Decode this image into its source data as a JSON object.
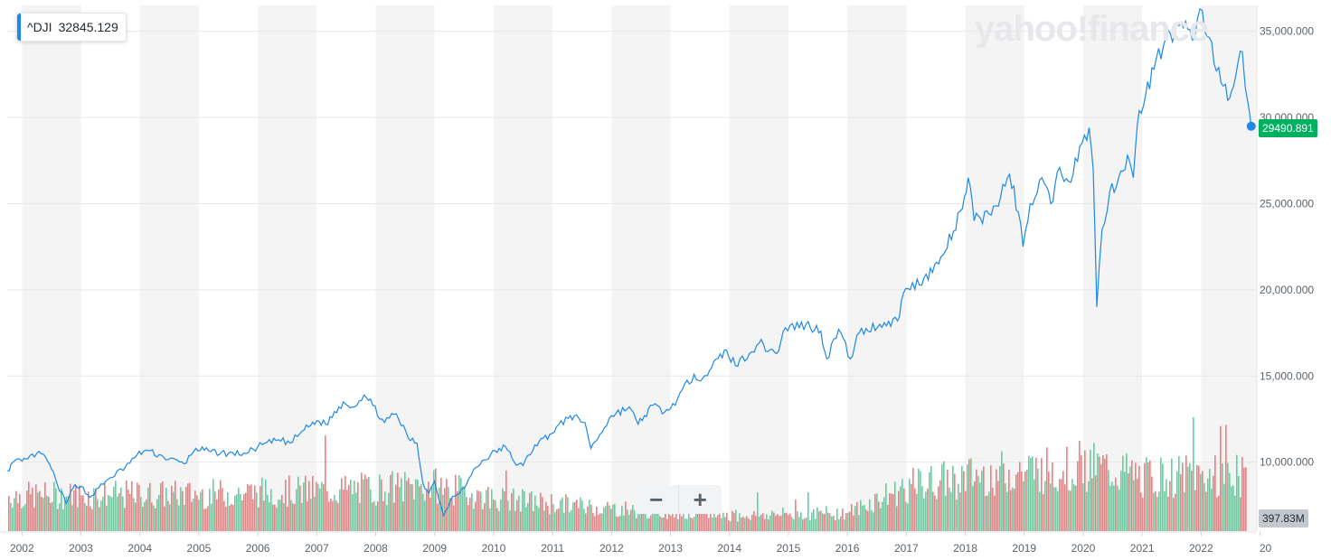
{
  "tooltip": {
    "symbol": "^DJI",
    "value": "32845.129"
  },
  "watermark": "yahoo!finance",
  "last_price_label": "29490.891",
  "volume_label": "397.83M",
  "colors": {
    "line": "#1e88e5",
    "vol_up": "#3ccf8e",
    "vol_down": "#f56565",
    "band": "#f4f4f4",
    "price_tag": "#00b061"
  },
  "chart_data": {
    "type": "line",
    "series": [
      {
        "values": [
          [
            2001.75,
            9500
          ],
          [
            2001.85,
            10000
          ],
          [
            2002.0,
            10050
          ],
          [
            2002.1,
            10200
          ],
          [
            2002.25,
            10500
          ],
          [
            2002.4,
            10300
          ],
          [
            2002.5,
            9600
          ],
          [
            2002.6,
            8700
          ],
          [
            2002.75,
            7600
          ],
          [
            2002.9,
            8700
          ],
          [
            2003.0,
            8600
          ],
          [
            2003.15,
            7950
          ],
          [
            2003.3,
            8500
          ],
          [
            2003.5,
            9100
          ],
          [
            2003.75,
            9700
          ],
          [
            2003.95,
            10400
          ],
          [
            2004.1,
            10700
          ],
          [
            2004.4,
            10300
          ],
          [
            2004.75,
            9900
          ],
          [
            2004.95,
            10800
          ],
          [
            2005.2,
            10600
          ],
          [
            2005.5,
            10500
          ],
          [
            2005.8,
            10500
          ],
          [
            2006.0,
            10900
          ],
          [
            2006.35,
            11300
          ],
          [
            2006.55,
            11100
          ],
          [
            2006.75,
            11800
          ],
          [
            2007.0,
            12400
          ],
          [
            2007.15,
            12200
          ],
          [
            2007.45,
            13500
          ],
          [
            2007.6,
            13200
          ],
          [
            2007.8,
            13900
          ],
          [
            2007.95,
            13300
          ],
          [
            2008.15,
            12300
          ],
          [
            2008.35,
            12800
          ],
          [
            2008.55,
            11400
          ],
          [
            2008.7,
            11100
          ],
          [
            2008.8,
            8800
          ],
          [
            2008.9,
            8200
          ],
          [
            2009.0,
            8900
          ],
          [
            2009.15,
            6900
          ],
          [
            2009.3,
            8000
          ],
          [
            2009.5,
            8500
          ],
          [
            2009.7,
            9700
          ],
          [
            2009.95,
            10450
          ],
          [
            2010.2,
            10900
          ],
          [
            2010.35,
            10000
          ],
          [
            2010.5,
            9800
          ],
          [
            2010.7,
            11000
          ],
          [
            2010.95,
            11600
          ],
          [
            2011.3,
            12700
          ],
          [
            2011.55,
            12300
          ],
          [
            2011.65,
            10800
          ],
          [
            2011.8,
            11600
          ],
          [
            2012.0,
            12700
          ],
          [
            2012.3,
            13200
          ],
          [
            2012.45,
            12200
          ],
          [
            2012.7,
            13300
          ],
          [
            2012.9,
            12900
          ],
          [
            2013.0,
            13100
          ],
          [
            2013.4,
            15100
          ],
          [
            2013.55,
            14900
          ],
          [
            2013.7,
            15500
          ],
          [
            2013.95,
            16500
          ],
          [
            2014.1,
            15600
          ],
          [
            2014.5,
            16900
          ],
          [
            2014.8,
            16300
          ],
          [
            2014.95,
            17800
          ],
          [
            2015.3,
            18000
          ],
          [
            2015.55,
            17600
          ],
          [
            2015.65,
            16000
          ],
          [
            2015.85,
            17700
          ],
          [
            2016.05,
            16000
          ],
          [
            2016.2,
            17500
          ],
          [
            2016.55,
            18000
          ],
          [
            2016.85,
            18200
          ],
          [
            2016.95,
            19800
          ],
          [
            2017.3,
            20700
          ],
          [
            2017.55,
            21500
          ],
          [
            2017.8,
            23400
          ],
          [
            2017.95,
            24700
          ],
          [
            2018.05,
            26500
          ],
          [
            2018.15,
            24000
          ],
          [
            2018.4,
            24400
          ],
          [
            2018.6,
            25400
          ],
          [
            2018.75,
            26700
          ],
          [
            2018.9,
            24500
          ],
          [
            2018.98,
            22500
          ],
          [
            2019.1,
            25000
          ],
          [
            2019.3,
            26500
          ],
          [
            2019.45,
            25000
          ],
          [
            2019.6,
            27100
          ],
          [
            2019.75,
            26300
          ],
          [
            2019.98,
            28500
          ],
          [
            2020.1,
            29400
          ],
          [
            2020.17,
            27000
          ],
          [
            2020.23,
            19000
          ],
          [
            2020.32,
            23500
          ],
          [
            2020.45,
            25700
          ],
          [
            2020.6,
            26500
          ],
          [
            2020.75,
            27800
          ],
          [
            2020.85,
            26500
          ],
          [
            2020.95,
            30400
          ],
          [
            2021.2,
            32800
          ],
          [
            2021.4,
            34600
          ],
          [
            2021.55,
            34800
          ],
          [
            2021.7,
            35200
          ],
          [
            2021.85,
            34500
          ],
          [
            2021.98,
            36300
          ],
          [
            2022.1,
            34700
          ],
          [
            2022.3,
            32900
          ],
          [
            2022.45,
            31000
          ],
          [
            2022.55,
            31800
          ],
          [
            2022.7,
            33800
          ],
          [
            2022.75,
            31700
          ],
          [
            2022.85,
            29490
          ]
        ]
      }
    ],
    "xlim": [
      2001.75,
      2022.93
    ],
    "ylim": [
      6000,
      36500
    ],
    "x_ticks": [
      "2002",
      "2003",
      "2004",
      "2005",
      "2006",
      "2007",
      "2008",
      "2009",
      "2010",
      "2011",
      "2012",
      "2013",
      "2014",
      "2015",
      "2016",
      "2017",
      "2018",
      "2019",
      "2020",
      "2021",
      "2022",
      "20"
    ],
    "y_ticks": [
      "10,000.000",
      "15,000.000",
      "20,000.000",
      "25,000.000",
      "30,000.000",
      "35,000.000"
    ],
    "y_tick_values": [
      10000,
      15000,
      20000,
      25000,
      30000,
      35000
    ],
    "grid": true,
    "volume": {
      "ylim": [
        0,
        700
      ],
      "segments": [
        [
          2001.75,
          250
        ],
        [
          2005.0,
          260
        ],
        [
          2008.0,
          300
        ],
        [
          2009.0,
          320
        ],
        [
          2010.0,
          230
        ],
        [
          2012.0,
          160
        ],
        [
          2014.0,
          110
        ],
        [
          2016.0,
          130
        ],
        [
          2016.98,
          310
        ],
        [
          2018.0,
          380
        ],
        [
          2020.0,
          460
        ],
        [
          2021.0,
          380
        ],
        [
          2022.0,
          390
        ],
        [
          2022.93,
          380
        ]
      ]
    }
  }
}
